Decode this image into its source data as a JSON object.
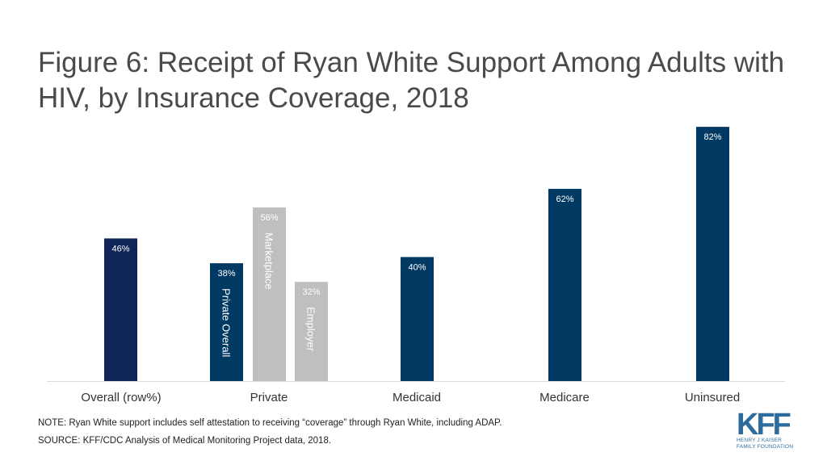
{
  "title": "Figure 6: Receipt of Ryan White Support Among Adults with HIV, by Insurance Coverage, 2018",
  "chart_data": {
    "type": "bar",
    "title": "Figure 6: Receipt of Ryan White Support Among Adults with HIV, by Insurance Coverage, 2018",
    "xlabel": "",
    "ylabel": "",
    "ylim": [
      0,
      100
    ],
    "grid": false,
    "unit": "%",
    "categories": [
      "Overall (row%)",
      "Private",
      "Medicaid",
      "Medicare",
      "Uninsured"
    ],
    "bars": [
      {
        "category": "Overall (row%)",
        "series": "Overall",
        "value": 46,
        "label": "46%",
        "inner_label": "",
        "color": "#0f2557",
        "label_color": "#ffffff"
      },
      {
        "category": "Private",
        "series": "Private Overall",
        "value": 38,
        "label": "38%",
        "inner_label": "Private Overall",
        "color": "#003a63",
        "label_color": "#ffffff"
      },
      {
        "category": "Private",
        "series": "Marketplace",
        "value": 56,
        "label": "56%",
        "inner_label": "Marketplace",
        "color": "#bfbfbf",
        "label_color": "#ffffff"
      },
      {
        "category": "Private",
        "series": "Employer",
        "value": 32,
        "label": "32%",
        "inner_label": "Employer",
        "color": "#bfbfbf",
        "label_color": "#ffffff"
      },
      {
        "category": "Medicaid",
        "series": "Medicaid",
        "value": 40,
        "label": "40%",
        "inner_label": "",
        "color": "#003a63",
        "label_color": "#ffffff"
      },
      {
        "category": "Medicare",
        "series": "Medicare",
        "value": 62,
        "label": "62%",
        "inner_label": "",
        "color": "#003a63",
        "label_color": "#ffffff"
      },
      {
        "category": "Uninsured",
        "series": "Uninsured",
        "value": 82,
        "label": "82%",
        "inner_label": "",
        "color": "#003a63",
        "label_color": "#ffffff"
      }
    ]
  },
  "notes": {
    "note": "NOTE: Ryan White support includes self attestation to receiving “coverage” through Ryan White, including ADAP.",
    "source": "SOURCE: KFF/CDC Analysis of Medical Monitoring Project data, 2018."
  },
  "logo": {
    "letters": [
      "K",
      "F",
      "F"
    ],
    "line1": "HENRY J KAISER",
    "line2": "FAMILY FOUNDATION",
    "color": "#2d6c9c"
  }
}
